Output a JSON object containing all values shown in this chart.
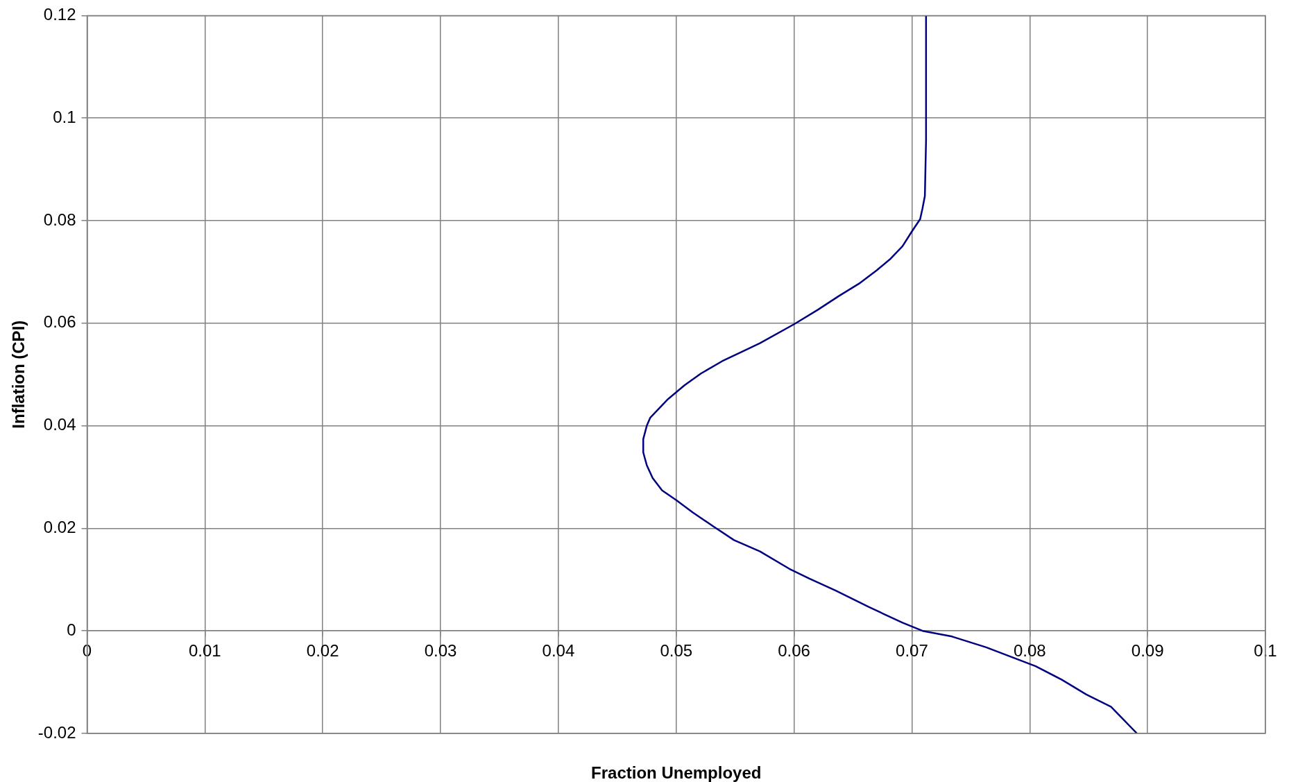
{
  "chart_data": {
    "type": "line",
    "xlabel": "Fraction Unemployed",
    "ylabel": "Inflation (CPI)",
    "series": [
      {
        "color": "#000080",
        "x": [
          0.0891,
          0.0869,
          0.0848,
          0.0827,
          0.0805,
          0.0763,
          0.0734,
          0.0709,
          0.0692,
          0.0663,
          0.0635,
          0.0613,
          0.0596,
          0.0571,
          0.0549,
          0.0532,
          0.0514,
          0.05,
          0.0488,
          0.048,
          0.0475,
          0.0472,
          0.0472,
          0.0475,
          0.0478,
          0.0493,
          0.0507,
          0.0521,
          0.0539,
          0.0571,
          0.06,
          0.062,
          0.0638,
          0.0655,
          0.067,
          0.0682,
          0.0692,
          0.07,
          0.0707,
          0.0709,
          0.0711,
          0.0712,
          0.0712
        ],
        "values": [
          -0.02,
          -0.0148,
          -0.0124,
          -0.0095,
          -0.0069,
          -0.0032,
          -0.0011,
          0,
          0.0016,
          0.0047,
          0.0079,
          0.0102,
          0.0121,
          0.0155,
          0.0177,
          0.0203,
          0.0231,
          0.0255,
          0.0274,
          0.0298,
          0.0323,
          0.0348,
          0.0374,
          0.04,
          0.0416,
          0.0452,
          0.0479,
          0.0502,
          0.0526,
          0.0561,
          0.0598,
          0.0626,
          0.0653,
          0.0677,
          0.0703,
          0.0726,
          0.075,
          0.0779,
          0.0803,
          0.0824,
          0.0848,
          0.0956,
          0.12
        ]
      }
    ],
    "xlim": [
      0,
      0.1
    ],
    "xticks": [
      0,
      0.01,
      0.02,
      0.03,
      0.04,
      0.05,
      0.06,
      0.07,
      0.08,
      0.09,
      0.1
    ],
    "ylim": [
      -0.02,
      0.12
    ],
    "yticks": [
      -0.02,
      0,
      0.02,
      0.04,
      0.06,
      0.08,
      0.1,
      0.12
    ],
    "grid": true,
    "legend": false,
    "marker": "none",
    "line_style": "solid"
  }
}
